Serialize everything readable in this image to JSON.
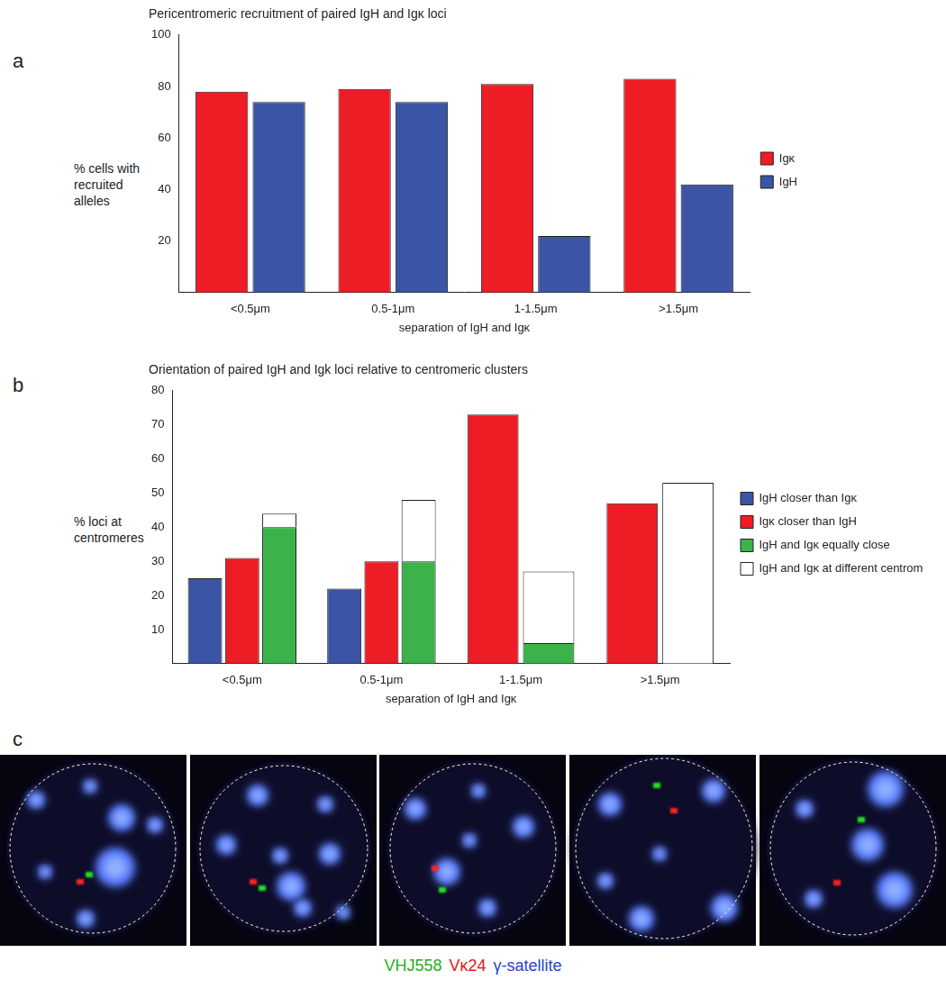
{
  "chart_data": [
    {
      "type": "bar",
      "title": "Pericentromeric recruitment of paired IgH and Igκ loci",
      "x_label": "separation of IgH and Igκ",
      "y_label": "% cells with recruited alleles",
      "categories": [
        "<0.5μm",
        "0.5-1μm",
        "1-1.5μm",
        ">1.5μm"
      ],
      "series": [
        {
          "name": "Igκ",
          "color": "#ee1c25",
          "values": [
            78,
            79,
            81,
            83
          ]
        },
        {
          "name": "IgH",
          "color": "#3b54a5",
          "values": [
            74,
            74,
            22,
            42
          ]
        }
      ],
      "ylim": [
        0,
        100
      ],
      "yticks": [
        20,
        40,
        60,
        80,
        100
      ],
      "grid": false,
      "legend": "right"
    },
    {
      "type": "bar",
      "title": "Orientation of paired IgH and Igk loci relative to centromeric clusters",
      "x_label": "separation of IgH and Igκ",
      "y_label": "% loci at centromeres",
      "categories": [
        "<0.5μm",
        "0.5-1μm",
        "1-1.5μm",
        ">1.5μm"
      ],
      "series": [
        {
          "name": "IgH closer than Igκ",
          "color": "#3b54a5",
          "values": [
            25,
            22,
            null,
            null
          ]
        },
        {
          "name": "Igκ closer than IgH",
          "color": "#ee1c25",
          "values": [
            31,
            30,
            73,
            47
          ]
        },
        {
          "name": "IgH and Igκ equally close",
          "color": "#3cb34a",
          "values": [
            40,
            30,
            6,
            null
          ],
          "stacked": true
        },
        {
          "name": "IgH and Igκ at different centromeres",
          "color": "#ffffff",
          "values": [
            4,
            18,
            21,
            53
          ],
          "stacked": true
        }
      ],
      "ylim": [
        0,
        80
      ],
      "yticks": [
        10,
        20,
        30,
        40,
        50,
        60,
        70,
        80
      ],
      "grid": false,
      "legend": "right"
    }
  ],
  "panel_labels": [
    "a",
    "b",
    "c"
  ],
  "micrograph_legend": [
    {
      "text": "VHJ558",
      "color": "#1fae1f"
    },
    {
      "text": "Vκ24",
      "color": "#e0161e"
    },
    {
      "text": "γ-satellite",
      "color": "#2a3fd0"
    }
  ]
}
